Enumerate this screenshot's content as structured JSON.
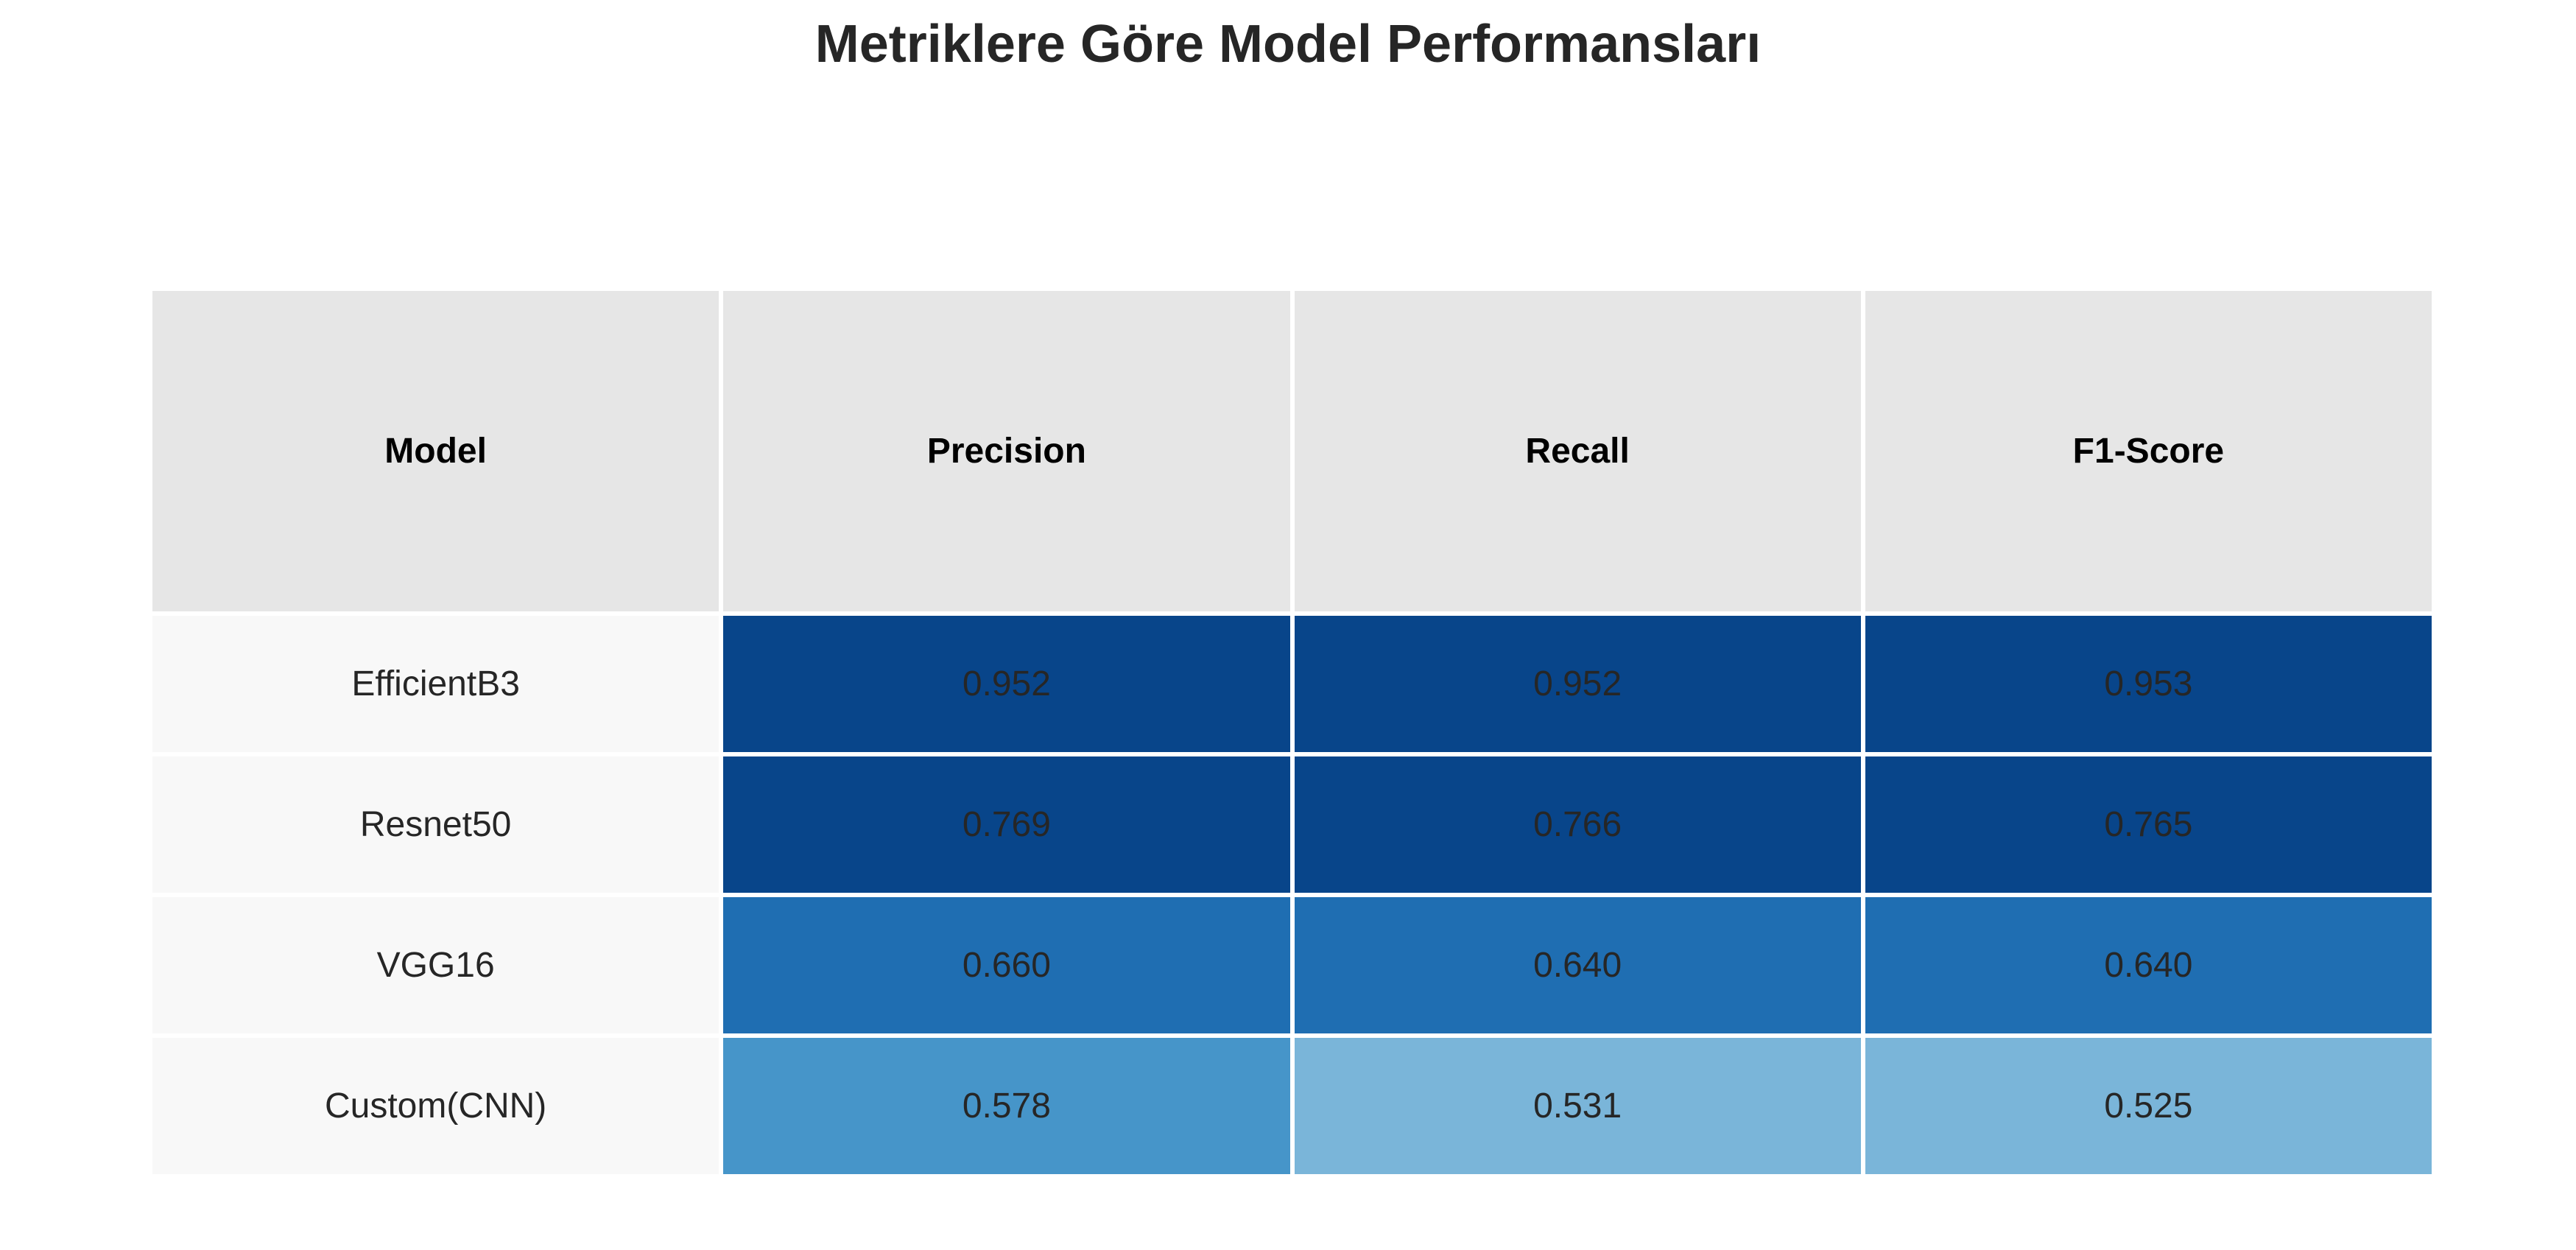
{
  "chart_data": {
    "type": "table",
    "title": "Metriklere Göre Model Performansları",
    "columns": [
      "Model",
      "Precision",
      "Recall",
      "F1-Score"
    ],
    "rows": [
      {
        "model": "EfficientB3",
        "values": [
          "0.952",
          "0.952",
          "0.953"
        ]
      },
      {
        "model": "Resnet50",
        "values": [
          "0.769",
          "0.766",
          "0.765"
        ]
      },
      {
        "model": "VGG16",
        "values": [
          "0.660",
          "0.640",
          "0.640"
        ]
      },
      {
        "model": "Custom(CNN)",
        "values": [
          "0.578",
          "0.531",
          "0.525"
        ]
      }
    ],
    "cell_colors": [
      [
        "#08458a",
        "#08458a",
        "#08458a"
      ],
      [
        "#08458a",
        "#08458a",
        "#08458a"
      ],
      [
        "#1f6eb2",
        "#1f6eb2",
        "#1f6eb2"
      ],
      [
        "#4695c9",
        "#7ab5d9",
        "#7ab5d9"
      ]
    ],
    "header_bg": "#e6e6e6",
    "label_bg": "#f8f8f8"
  }
}
